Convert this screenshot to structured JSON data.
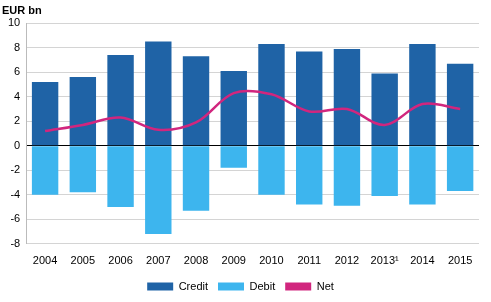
{
  "chart_data": {
    "type": "bar",
    "y_label": "EUR bn",
    "categories": [
      "2004",
      "2005",
      "2006",
      "2007",
      "2008",
      "2009",
      "2010",
      "2011",
      "2012",
      "2013¹",
      "2014",
      "2015"
    ],
    "series": [
      {
        "name": "Credit",
        "type": "bar",
        "color": "#1f63a6",
        "values": [
          5.2,
          5.6,
          7.4,
          8.5,
          7.3,
          6.1,
          8.3,
          7.7,
          7.9,
          5.9,
          8.3,
          6.7
        ]
      },
      {
        "name": "Debit",
        "type": "bar",
        "color": "#3db5ee",
        "values": [
          -4.0,
          -3.8,
          -5.0,
          -7.2,
          -5.3,
          -1.8,
          -4.0,
          -4.8,
          -4.9,
          -4.1,
          -4.8,
          -3.7
        ]
      },
      {
        "name": "Net",
        "type": "line",
        "color": "#d1267e",
        "marker": "none",
        "values": [
          1.2,
          1.7,
          2.3,
          1.3,
          1.9,
          4.3,
          4.2,
          2.8,
          3.0,
          1.7,
          3.4,
          3.0
        ]
      }
    ],
    "ylim": [
      -8,
      10
    ],
    "yticks": [
      -8,
      -6,
      -4,
      -2,
      0,
      2,
      4,
      6,
      8,
      10
    ],
    "grid": true,
    "stacked": true,
    "legend": "bottom"
  }
}
